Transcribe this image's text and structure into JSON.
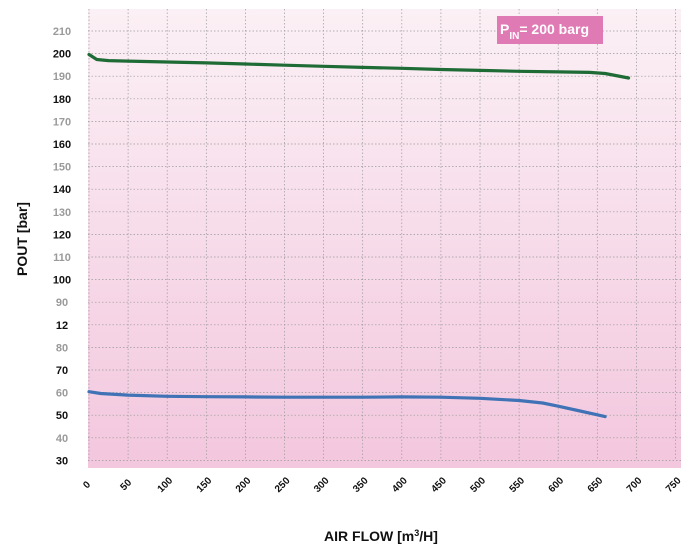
{
  "chart_data": {
    "type": "line",
    "title": "",
    "xlabel": "AIR FLOW [m",
    "xlabel_sup": "3",
    "xlabel_tail": "/H]",
    "ylabel": "POUT [bar]",
    "xlim": [
      0,
      750
    ],
    "x_ticks": [
      "0",
      "50",
      "100",
      "150",
      "200",
      "250",
      "300",
      "350",
      "400",
      "450",
      "500",
      "550",
      "600",
      "650",
      "700",
      "750"
    ],
    "y_ticks": [
      {
        "label": "210",
        "style": "minor"
      },
      {
        "label": "200",
        "style": "major"
      },
      {
        "label": "190",
        "style": "minor"
      },
      {
        "label": "180",
        "style": "major"
      },
      {
        "label": "170",
        "style": "minor"
      },
      {
        "label": "160",
        "style": "major"
      },
      {
        "label": "150",
        "style": "minor"
      },
      {
        "label": "140",
        "style": "major"
      },
      {
        "label": "130",
        "style": "minor"
      },
      {
        "label": "120",
        "style": "major"
      },
      {
        "label": "110",
        "style": "minor"
      },
      {
        "label": "100",
        "style": "major"
      },
      {
        "label": "90",
        "style": "minor"
      },
      {
        "label": "12",
        "style": "major"
      },
      {
        "label": "80",
        "style": "minor"
      },
      {
        "label": "70",
        "style": "major"
      },
      {
        "label": "60",
        "style": "minor"
      },
      {
        "label": "50",
        "style": "major"
      },
      {
        "label": "40",
        "style": "minor"
      },
      {
        "label": "30",
        "style": "major"
      }
    ],
    "grid": true,
    "annotation": {
      "p": "P",
      "sub": "IN",
      "rest": "= 200 barg",
      "position": "top-right",
      "color": "#e07ab5"
    },
    "background": {
      "top": "#fbf0f5",
      "bottom": "#f3c7de"
    },
    "series": [
      {
        "color": "#1e6b36",
        "x": [
          0,
          10,
          25,
          50,
          100,
          150,
          200,
          250,
          300,
          350,
          400,
          450,
          500,
          550,
          600,
          640,
          660,
          680,
          690
        ],
        "y": [
          201,
          198.8,
          198.3,
          198.1,
          197.7,
          197.3,
          196.8,
          196.3,
          195.8,
          195.3,
          194.9,
          194.4,
          194.0,
          193.6,
          193.3,
          193.1,
          192.6,
          191.3,
          190.6
        ]
      },
      {
        "color": "#3f73b6",
        "x": [
          0,
          15,
          50,
          100,
          150,
          200,
          250,
          300,
          350,
          400,
          450,
          500,
          550,
          580,
          600,
          625,
          650,
          660
        ],
        "y": [
          51.8,
          51.0,
          50.3,
          49.8,
          49.6,
          49.5,
          49.4,
          49.4,
          49.4,
          49.5,
          49.4,
          48.9,
          47.9,
          46.8,
          45.4,
          43.5,
          41.6,
          40.8
        ]
      }
    ]
  }
}
